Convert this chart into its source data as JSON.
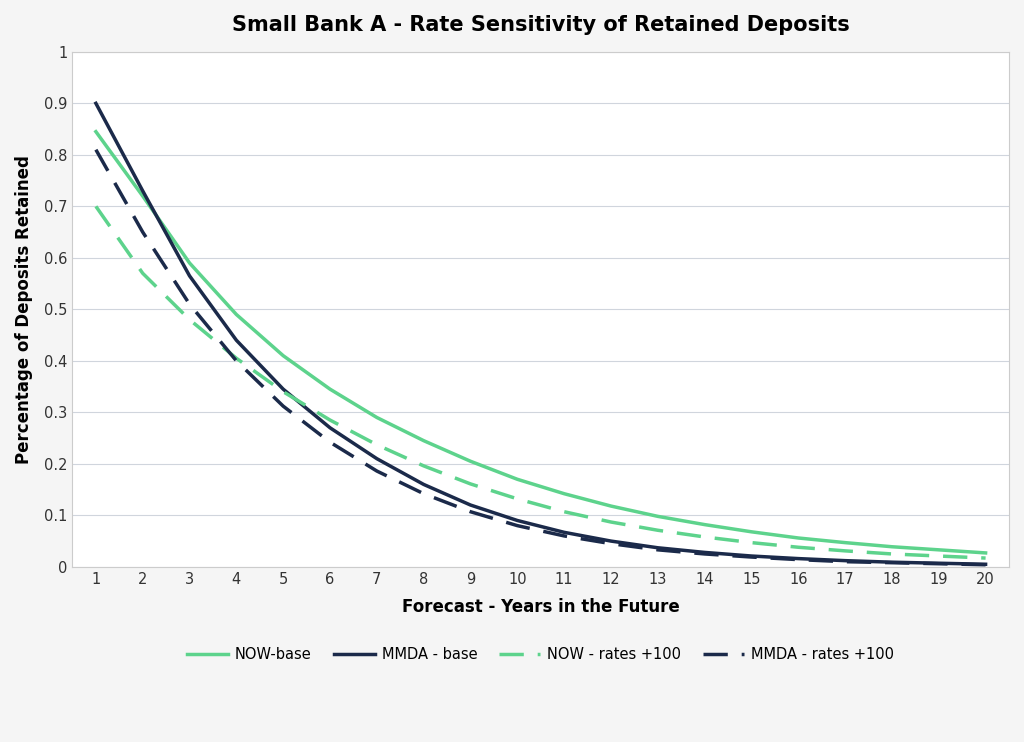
{
  "title": "Small Bank A - Rate Sensitivity of Retained Deposits",
  "xlabel": "Forecast - Years in the Future",
  "ylabel": "Percentage of Deposits Retained",
  "x": [
    1,
    2,
    3,
    4,
    5,
    6,
    7,
    8,
    9,
    10,
    11,
    12,
    13,
    14,
    15,
    16,
    17,
    18,
    19,
    20
  ],
  "now_base": [
    0.845,
    0.72,
    0.59,
    0.49,
    0.41,
    0.345,
    0.29,
    0.245,
    0.205,
    0.17,
    0.142,
    0.118,
    0.098,
    0.082,
    0.068,
    0.056,
    0.047,
    0.039,
    0.033,
    0.027
  ],
  "mmda_base": [
    0.9,
    0.73,
    0.565,
    0.44,
    0.345,
    0.27,
    0.21,
    0.16,
    0.12,
    0.09,
    0.067,
    0.05,
    0.037,
    0.028,
    0.021,
    0.016,
    0.012,
    0.009,
    0.007,
    0.005
  ],
  "now_rates100": [
    0.7,
    0.57,
    0.48,
    0.405,
    0.34,
    0.285,
    0.237,
    0.196,
    0.161,
    0.132,
    0.107,
    0.087,
    0.071,
    0.058,
    0.047,
    0.038,
    0.031,
    0.025,
    0.021,
    0.017
  ],
  "mmda_rates100": [
    0.81,
    0.65,
    0.51,
    0.4,
    0.312,
    0.242,
    0.186,
    0.142,
    0.107,
    0.08,
    0.06,
    0.045,
    0.033,
    0.025,
    0.019,
    0.014,
    0.01,
    0.008,
    0.006,
    0.004
  ],
  "color_now": "#5dd38c",
  "color_mmda": "#1b2a4a",
  "ylim": [
    0,
    1.0
  ],
  "yticks": [
    0,
    0.1,
    0.2,
    0.3,
    0.4,
    0.5,
    0.6,
    0.7,
    0.8,
    0.9,
    1
  ],
  "xticks": [
    1,
    2,
    3,
    4,
    5,
    6,
    7,
    8,
    9,
    10,
    11,
    12,
    13,
    14,
    15,
    16,
    17,
    18,
    19,
    20
  ],
  "background_color": "#f5f5f5",
  "plot_bg_color": "#ffffff",
  "grid_color": "#d0d5dd",
  "border_color": "#cccccc",
  "legend_labels": [
    "NOW-base",
    "MMDA - base",
    "NOW - rates +100",
    "MMDA - rates +100"
  ]
}
